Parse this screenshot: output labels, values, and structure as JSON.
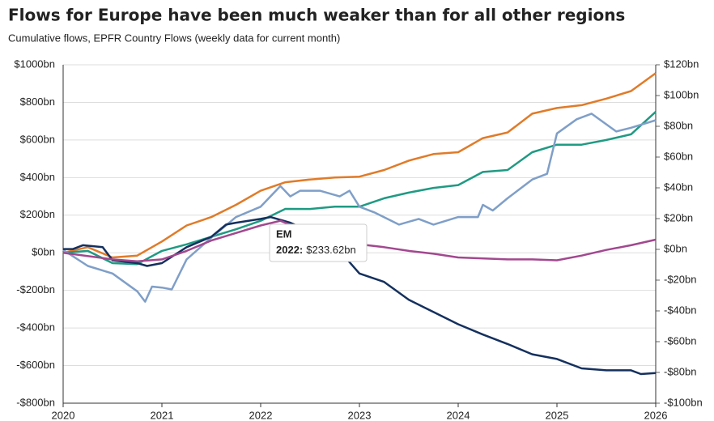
{
  "chart_data": {
    "type": "line",
    "title": "Flows for Europe have been much weaker than for all other regions",
    "subtitle": "Cumulative flows, EPFR Country Flows (weekly data for current month)",
    "xlim": [
      2020,
      2026
    ],
    "xticks": [
      2020,
      2021,
      2022,
      2023,
      2024,
      2025,
      2026
    ],
    "ylim": [
      -800,
      1000
    ],
    "yticks": [
      {
        "value": -800,
        "label": "-$800bn"
      },
      {
        "value": -600,
        "label": "-$600bn"
      },
      {
        "value": -400,
        "label": "-$400bn"
      },
      {
        "value": -200,
        "label": "-$200bn"
      },
      {
        "value": 0,
        "label": "$0bn"
      },
      {
        "value": 200,
        "label": "$200bn"
      },
      {
        "value": 400,
        "label": "$400bn"
      },
      {
        "value": 600,
        "label": "$600bn"
      },
      {
        "value": 800,
        "label": "$800bn"
      },
      {
        "value": 1000,
        "label": "$1000bn"
      }
    ],
    "y2lim": [
      -100,
      120
    ],
    "y2ticks": [
      {
        "value": -100,
        "label": "-$100bn"
      },
      {
        "value": -80,
        "label": "-$80bn"
      },
      {
        "value": -60,
        "label": "-$60bn"
      },
      {
        "value": -40,
        "label": "-$40bn"
      },
      {
        "value": -20,
        "label": "-$20bn"
      },
      {
        "value": 0,
        "label": "$0bn"
      },
      {
        "value": 20,
        "label": "$20bn"
      },
      {
        "value": 40,
        "label": "$40bn"
      },
      {
        "value": 60,
        "label": "$60bn"
      },
      {
        "value": 80,
        "label": "$80bn"
      },
      {
        "value": 100,
        "label": "$100bn"
      },
      {
        "value": 120,
        "label": "$120bn"
      }
    ],
    "grid": true,
    "series": [
      {
        "color": "#e07b28",
        "x": [
          2020,
          2020.25,
          2020.5,
          2020.75,
          2021,
          2021.25,
          2021.5,
          2021.75,
          2022,
          2022.25,
          2022.5,
          2022.75,
          2023,
          2023.25,
          2023.5,
          2023.75,
          2024,
          2024.25,
          2024.5,
          2024.75,
          2025,
          2025.25,
          2025.5,
          2025.75,
          2026
        ],
        "values": [
          0,
          30,
          -25,
          -15,
          60,
          145,
          190,
          255,
          330,
          375,
          390,
          400,
          405,
          440,
          490,
          525,
          535,
          610,
          640,
          740,
          770,
          785,
          820,
          860,
          955
        ]
      },
      {
        "name": "EM",
        "color": "#1f9a83",
        "x": [
          2020,
          2020.25,
          2020.5,
          2020.75,
          2021,
          2021.25,
          2021.5,
          2021.75,
          2022,
          2022.25,
          2022.5,
          2022.75,
          2023,
          2023.25,
          2023.5,
          2023.75,
          2024,
          2024.25,
          2024.5,
          2024.75,
          2025,
          2025.25,
          2025.5,
          2025.75,
          2026
        ],
        "values": [
          0,
          10,
          -55,
          -60,
          10,
          45,
          85,
          125,
          170,
          233.62,
          233,
          245,
          245,
          290,
          320,
          345,
          360,
          430,
          440,
          535,
          575,
          575,
          600,
          630,
          750
        ]
      },
      {
        "color": "#7f9fc8",
        "x": [
          2020,
          2020.25,
          2020.5,
          2020.75,
          2020.83,
          2020.9,
          2021,
          2021.1,
          2021.25,
          2021.5,
          2021.75,
          2022,
          2022.2,
          2022.3,
          2022.4,
          2022.6,
          2022.8,
          2022.9,
          2023,
          2023.15,
          2023.4,
          2023.6,
          2023.75,
          2024,
          2024.2,
          2024.25,
          2024.35,
          2024.5,
          2024.6,
          2024.75,
          2024.9,
          2025,
          2025.2,
          2025.35,
          2025.6,
          2025.75,
          2026
        ],
        "values": [
          15,
          -70,
          -110,
          -205,
          -260,
          -180,
          -185,
          -195,
          -35,
          80,
          190,
          245,
          355,
          300,
          330,
          330,
          300,
          330,
          245,
          215,
          150,
          180,
          150,
          190,
          190,
          255,
          225,
          290,
          330,
          390,
          420,
          635,
          710,
          740,
          645,
          665,
          705
        ]
      },
      {
        "color": "#14305e",
        "x": [
          2020,
          2020.1,
          2020.2,
          2020.4,
          2020.5,
          2020.75,
          2020.85,
          2021,
          2021.25,
          2021.5,
          2021.65,
          2021.75,
          2022,
          2022.1,
          2022.3,
          2022.5,
          2022.75,
          2023,
          2023.25,
          2023.5,
          2023.75,
          2024,
          2024.25,
          2024.5,
          2024.75,
          2025,
          2025.25,
          2025.5,
          2025.75,
          2025.85,
          2026
        ],
        "values": [
          20,
          20,
          40,
          30,
          -40,
          -55,
          -70,
          -55,
          30,
          85,
          150,
          160,
          180,
          190,
          160,
          115,
          40,
          -110,
          -155,
          -250,
          -315,
          -380,
          -435,
          -485,
          -540,
          -565,
          -615,
          -625,
          -625,
          -645,
          -640
        ]
      },
      {
        "color": "#a2488f",
        "x": [
          2020,
          2020.5,
          2020.75,
          2021,
          2021.25,
          2021.5,
          2021.75,
          2022,
          2022.2,
          2022.75,
          2023,
          2023.25,
          2023.5,
          2023.75,
          2024,
          2024.5,
          2024.75,
          2025,
          2025.25,
          2025.5,
          2025.75,
          2026
        ],
        "values": [
          0,
          -35,
          -45,
          -35,
          10,
          65,
          105,
          145,
          170,
          50,
          45,
          30,
          10,
          -5,
          -25,
          -35,
          -35,
          -40,
          -15,
          15,
          40,
          70
        ]
      }
    ],
    "tooltip": {
      "name": "EM",
      "x": "2022:",
      "value": 233.62,
      "value_label": "$233.62bn"
    }
  }
}
